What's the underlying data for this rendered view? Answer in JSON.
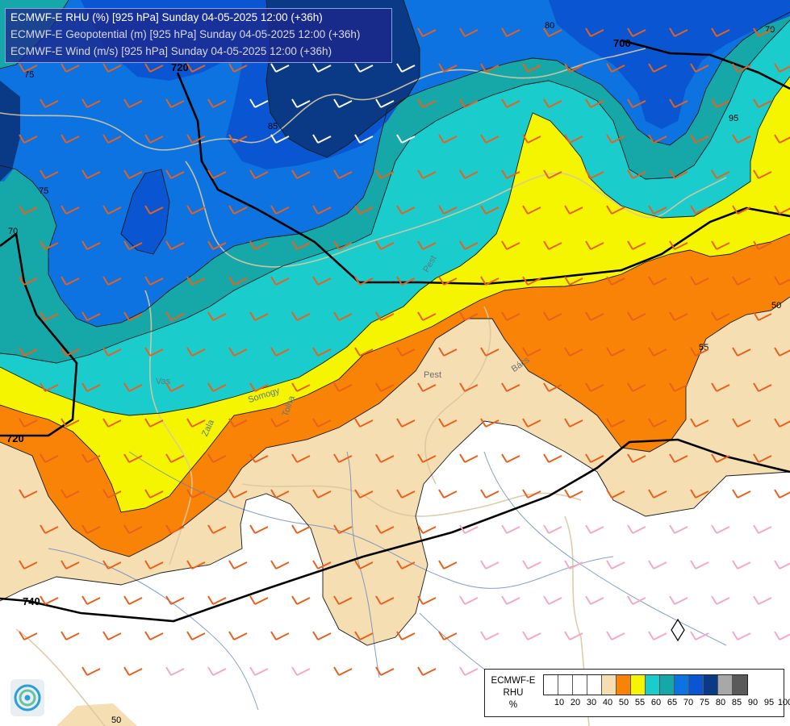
{
  "title_lines": [
    "ECMWF-E RHU (%) [925 hPa] Sunday 04-05-2025 12:00 (+36h)",
    "ECMWF-E Geopotential (m) [925 hPa] Sunday 04-05-2025 12:00 (+36h)",
    "ECMWF-E Wind (m/s) [925 hPa] Sunday 04-05-2025 12:00 (+36h)"
  ],
  "legend": {
    "title_lines": [
      "ECMWF-E",
      "RHU",
      "%"
    ],
    "ticks": [
      "10",
      "20",
      "30",
      "40",
      "50",
      "55",
      "60",
      "65",
      "70",
      "75",
      "80",
      "85",
      "90",
      "95",
      "100"
    ],
    "colors": [
      "#ffffff",
      "#ffffff",
      "#ffffff",
      "#ffffff",
      "#f6deb3",
      "#f98306",
      "#f5f500",
      "#1acccc",
      "#16a8a8",
      "#0d73e0",
      "#0a56d2",
      "#0a3a86",
      "#a8a8a8",
      "#5a5a5a"
    ]
  },
  "geopotential_labels": [
    "720",
    "740",
    "700",
    "720"
  ],
  "rhu_contour_labels": [
    "75",
    "75",
    "80",
    "70",
    "85",
    "95",
    "50",
    "55",
    "50",
    "70"
  ],
  "place_labels": [
    "Pest",
    "Bács",
    "Zala",
    "Vas",
    "Somogy",
    "Tolna",
    "Pest"
  ],
  "colors": {
    "rh_50": "#f6deb3",
    "rh_55": "#f98306",
    "rh_60": "#f5f500",
    "rh_65": "#1acccc",
    "rh_70": "#16a8a8",
    "rh_75": "#0d73e0",
    "rh_80": "#0a56d2",
    "rh_85": "#0a3a86",
    "barb_orange": "#e8601c",
    "barb_pink": "#f4a8c8",
    "barb_white": "#ffffff",
    "barb_red": "#c40000",
    "border": "#d9c8a0",
    "river": "#5b7fc0"
  }
}
